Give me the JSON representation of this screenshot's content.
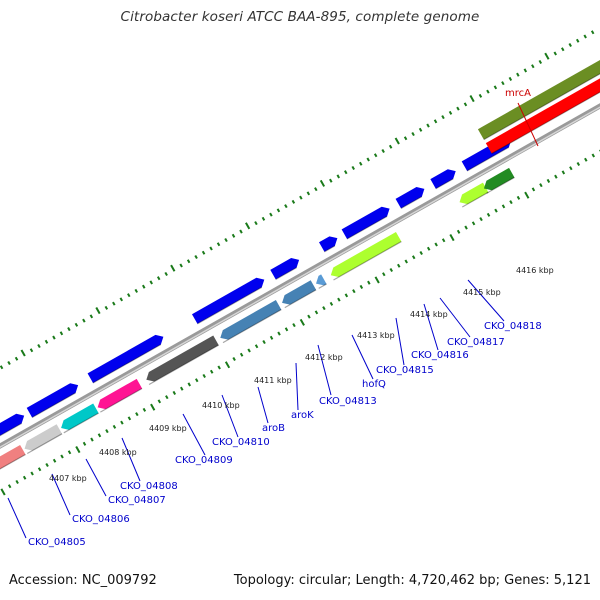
{
  "title": "Citrobacter koseri ATCC BAA-895, complete genome",
  "footer": {
    "accession": "Accession: NC_009792",
    "summary": "Topology: circular; Length: 4,720,462 bp; Genes: 5,121"
  },
  "colors": {
    "label_blue": "#0000cc",
    "label_red": "#cc0000",
    "tick_green": "#1a7a1a",
    "backbone": "#888888"
  },
  "tick_labels": [
    "4407 kbp",
    "4408 kbp",
    "4409 kbp",
    "4410 kbp",
    "4411 kbp",
    "4412 kbp",
    "4413 kbp",
    "4414 kbp",
    "4415 kbp",
    "4416 kbp"
  ],
  "gene_labels": [
    {
      "text": "CKO_04805",
      "color": "#0000cc"
    },
    {
      "text": "CKO_04806",
      "color": "#0000cc"
    },
    {
      "text": "CKO_04807",
      "color": "#0000cc"
    },
    {
      "text": "CKO_04808",
      "color": "#0000cc"
    },
    {
      "text": "CKO_04809",
      "color": "#0000cc"
    },
    {
      "text": "CKO_04810",
      "color": "#0000cc"
    },
    {
      "text": "aroB",
      "color": "#0000cc"
    },
    {
      "text": "aroK",
      "color": "#0000cc"
    },
    {
      "text": "CKO_04813",
      "color": "#0000cc"
    },
    {
      "text": "hofQ",
      "color": "#0000cc"
    },
    {
      "text": "CKO_04815",
      "color": "#0000cc"
    },
    {
      "text": "CKO_04816",
      "color": "#0000cc"
    },
    {
      "text": "CKO_04817",
      "color": "#0000cc"
    },
    {
      "text": "CKO_04818",
      "color": "#0000cc"
    },
    {
      "text": "mrcA",
      "color": "#cc0000"
    }
  ],
  "feature_colors": {
    "gene": "#0000ee",
    "cds_pink": "#f08080",
    "cds_gray_light": "#cccccc",
    "cds_cyan": "#00c8c8",
    "cds_magenta": "#ff1493",
    "cds_dark_gray": "#555555",
    "cds_steel": "#4682b4",
    "cds_lime": "#adff2f",
    "cds_green": "#228b22",
    "cds_olive": "#6b8e23",
    "cds_red": "#ff0000"
  }
}
